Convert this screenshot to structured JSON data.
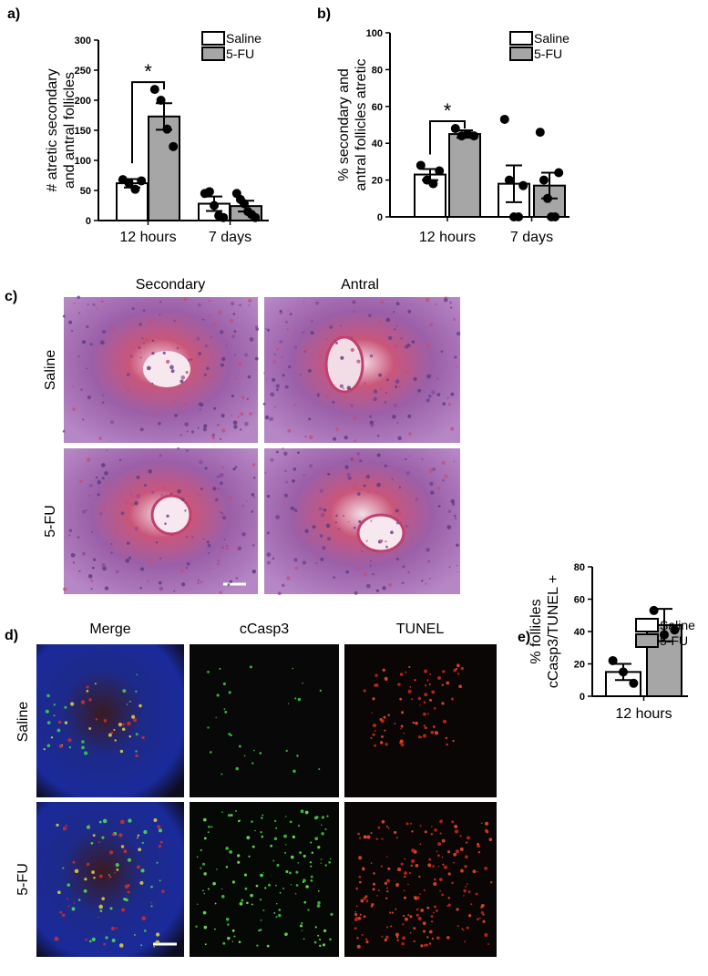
{
  "chart_data": [
    {
      "type": "bar",
      "panel": "a)",
      "ylabel": [
        "# atretic secondary",
        "and antral follicles"
      ],
      "categories": [
        "12 hours",
        "7 days"
      ],
      "ylim": [
        0,
        300
      ],
      "yticks": [
        0,
        50,
        100,
        150,
        200,
        250,
        300
      ],
      "series": [
        {
          "name": "Saline",
          "color": "#ffffff",
          "values": [
            62,
            28
          ],
          "errors": [
            7,
            12
          ],
          "points": [
            [
              68,
              62,
              52,
              66
            ],
            [
              45,
              48,
              25,
              8,
              5
            ]
          ]
        },
        {
          "name": "5-FU",
          "color": "#a6a6a6",
          "values": [
            173,
            24
          ],
          "errors": [
            22,
            9
          ],
          "points": [
            [
              218,
              200,
              152,
              123
            ],
            [
              45,
              35,
              28,
              15,
              10,
              5
            ]
          ]
        }
      ],
      "significance": "*"
    },
    {
      "type": "bar",
      "panel": "b)",
      "ylabel": [
        "% secondary and",
        "antral follicles atretic"
      ],
      "categories": [
        "12 hours",
        "7 days"
      ],
      "ylim": [
        0,
        100
      ],
      "yticks": [
        0,
        20,
        40,
        60,
        80,
        100
      ],
      "series": [
        {
          "name": "Saline",
          "color": "#ffffff",
          "values": [
            23,
            18
          ],
          "errors": [
            3,
            10
          ],
          "points": [
            [
              28,
              20,
              18,
              25
            ],
            [
              53,
              20,
              0,
              0,
              17
            ]
          ]
        },
        {
          "name": "5-FU",
          "color": "#a6a6a6",
          "values": [
            45,
            17
          ],
          "errors": [
            2,
            7
          ],
          "points": [
            [
              48,
              44,
              45,
              44
            ],
            [
              46,
              20,
              10,
              0,
              0,
              24
            ]
          ]
        }
      ],
      "significance": "*"
    },
    {
      "type": "bar",
      "panel": "e)",
      "ylabel": [
        "% follicles",
        "cCasp3/TUNEL +"
      ],
      "categories": [
        "12 hours"
      ],
      "ylim": [
        0,
        80
      ],
      "yticks": [
        0,
        20,
        40,
        60,
        80
      ],
      "series": [
        {
          "name": "Saline",
          "color": "#ffffff",
          "values": [
            15
          ],
          "errors": [
            5
          ],
          "points": [
            [
              22,
              15,
              8
            ]
          ]
        },
        {
          "name": "5-FU",
          "color": "#a6a6a6",
          "values": [
            44
          ],
          "errors": [
            10
          ],
          "points": [
            [
              53,
              38,
              41
            ]
          ]
        }
      ]
    }
  ],
  "figure": {
    "panel_c": {
      "label": "c)",
      "columns": [
        "Secondary",
        "Antral"
      ],
      "rows": [
        "Saline",
        "5-FU"
      ]
    },
    "panel_d": {
      "label": "d)",
      "columns": [
        "Merge",
        "cCasp3",
        "TUNEL"
      ],
      "rows": [
        "Saline",
        "5-FU"
      ]
    }
  }
}
